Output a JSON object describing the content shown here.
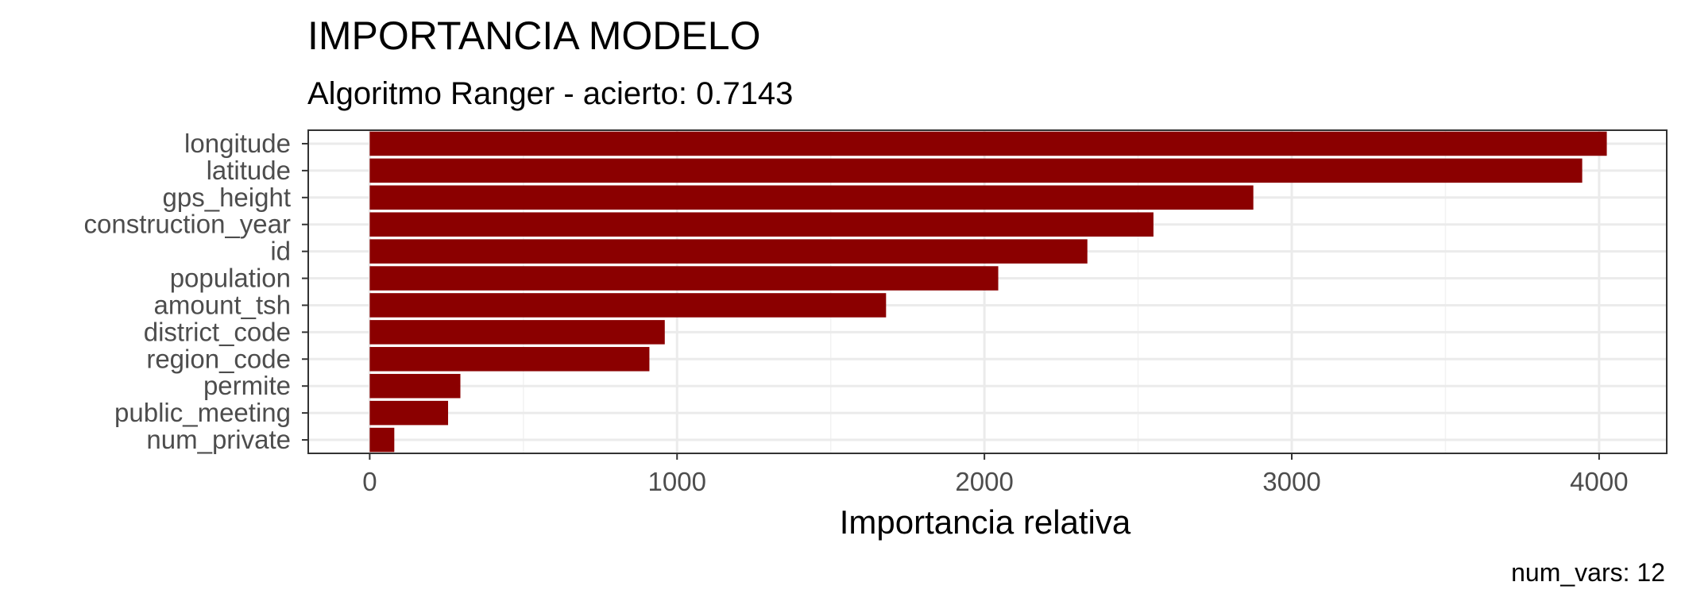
{
  "chart_data": {
    "type": "bar",
    "orientation": "horizontal",
    "title": "IMPORTANCIA MODELO",
    "subtitle": "Algoritmo Ranger - acierto: 0.7143",
    "xlabel": "Importancia relativa",
    "ylabel": "",
    "caption": "num_vars: 12",
    "categories": [
      "longitude",
      "latitude",
      "gps_height",
      "construction_year",
      "id",
      "population",
      "amount_tsh",
      "district_code",
      "region_code",
      "permite",
      "public_meeting",
      "num_private"
    ],
    "values": [
      4025,
      3945,
      2875,
      2550,
      2335,
      2045,
      1680,
      960,
      910,
      295,
      255,
      80
    ],
    "xlim": [
      -200,
      4220
    ],
    "x_ticks": [
      0,
      1000,
      2000,
      3000,
      4000
    ],
    "x_tick_labels": [
      "0",
      "1000",
      "2000",
      "3000",
      "4000"
    ],
    "bar_color": "#8b0000",
    "grid": true,
    "theme": "bw"
  }
}
